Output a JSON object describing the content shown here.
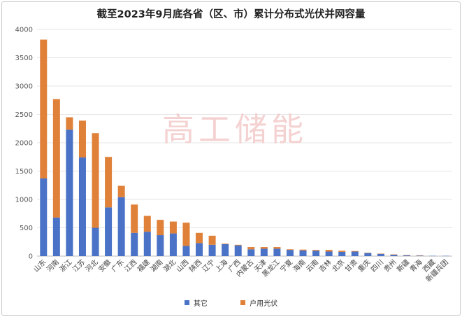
{
  "colors": {
    "series_0": "#4a72c6",
    "series_1": "#e0813a"
  },
  "chart_data": {
    "type": "bar",
    "stacked": true,
    "title": "截至2023年9月底各省（区、市）累计分布式光伏并网容量",
    "watermark": "高工储能",
    "categories": [
      "山东",
      "河南",
      "浙江",
      "江苏",
      "河北",
      "安徽",
      "广东",
      "江西",
      "福建",
      "湖南",
      "湖北",
      "山西",
      "陕西",
      "辽宁",
      "上海",
      "广西",
      "内蒙古",
      "天津",
      "黑龙江",
      "宁夏",
      "海南",
      "云南",
      "吉林",
      "北京",
      "甘肃",
      "重庆",
      "四川",
      "贵州",
      "新疆",
      "青海",
      "西藏",
      "新疆兵团"
    ],
    "series": [
      {
        "name": "其它",
        "values": [
          1370,
          680,
          2230,
          1740,
          500,
          860,
          1040,
          410,
          430,
          370,
          400,
          180,
          230,
          200,
          210,
          190,
          120,
          130,
          130,
          110,
          100,
          95,
          80,
          75,
          80,
          55,
          40,
          25,
          15,
          10,
          5,
          5
        ]
      },
      {
        "name": "户用光伏",
        "values": [
          2450,
          2090,
          220,
          650,
          1670,
          890,
          200,
          500,
          280,
          270,
          210,
          410,
          180,
          160,
          10,
          10,
          40,
          30,
          30,
          10,
          15,
          15,
          30,
          20,
          10,
          5,
          5,
          5,
          5,
          5,
          0,
          0
        ]
      }
    ],
    "ylim": [
      0,
      4000
    ],
    "yticks": [
      0,
      500,
      1000,
      1500,
      2000,
      2500,
      3000,
      3500,
      4000
    ],
    "grid": true,
    "legend": "bottom"
  }
}
